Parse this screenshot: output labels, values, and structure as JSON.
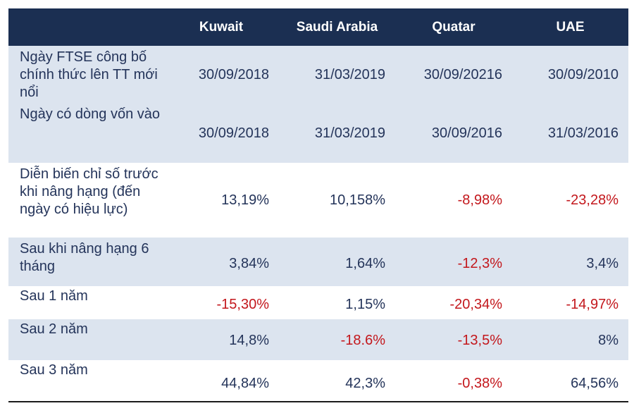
{
  "header": {
    "corner": "",
    "columns": [
      "Kuwait",
      "Saudi Arabia",
      "Quatar",
      "UAE"
    ]
  },
  "rows": [
    {
      "label": "Ngày FTSE công bố chính thức lên TT mới nổi",
      "values": [
        "30/09/2018",
        "31/03/2019",
        "30/09/20216",
        "30/09/2010"
      ],
      "negative": [
        false,
        false,
        false,
        false
      ]
    },
    {
      "label": "Ngày có dòng vốn vào",
      "values": [
        "30/09/2018",
        "31/03/2019",
        "30/09/2016",
        "31/03/2016"
      ],
      "negative": [
        false,
        false,
        false,
        false
      ]
    },
    {
      "label": "Diễn biến chỉ số trước khi nâng hạng (đến ngày có hiệu lực)",
      "values": [
        "13,19%",
        "10,158%",
        "-8,98%",
        "-23,28%"
      ],
      "negative": [
        false,
        false,
        true,
        true
      ]
    },
    {
      "label": "Sau khi nâng hạng 6 tháng",
      "values": [
        "3,84%",
        "1,64%",
        "-12,3%",
        "3,4%"
      ],
      "negative": [
        false,
        false,
        true,
        false
      ]
    },
    {
      "label": "Sau 1 năm",
      "values": [
        "-15,30%",
        "1,15%",
        "-20,34%",
        "-14,97%"
      ],
      "negative": [
        true,
        false,
        true,
        true
      ]
    },
    {
      "label": "Sau 2 năm",
      "values": [
        "14,8%",
        "-18.6%",
        "-13,5%",
        "8%"
      ],
      "negative": [
        false,
        true,
        true,
        false
      ]
    },
    {
      "label": "Sau 3 năm",
      "values": [
        "44,84%",
        "42,3%",
        "-0,38%",
        "64,56%"
      ],
      "negative": [
        false,
        false,
        true,
        false
      ]
    }
  ],
  "colors": {
    "header_bg": "#1b2f52",
    "band_bg": "#dce4ef",
    "text": "#24345a",
    "negative": "#c3171c"
  }
}
